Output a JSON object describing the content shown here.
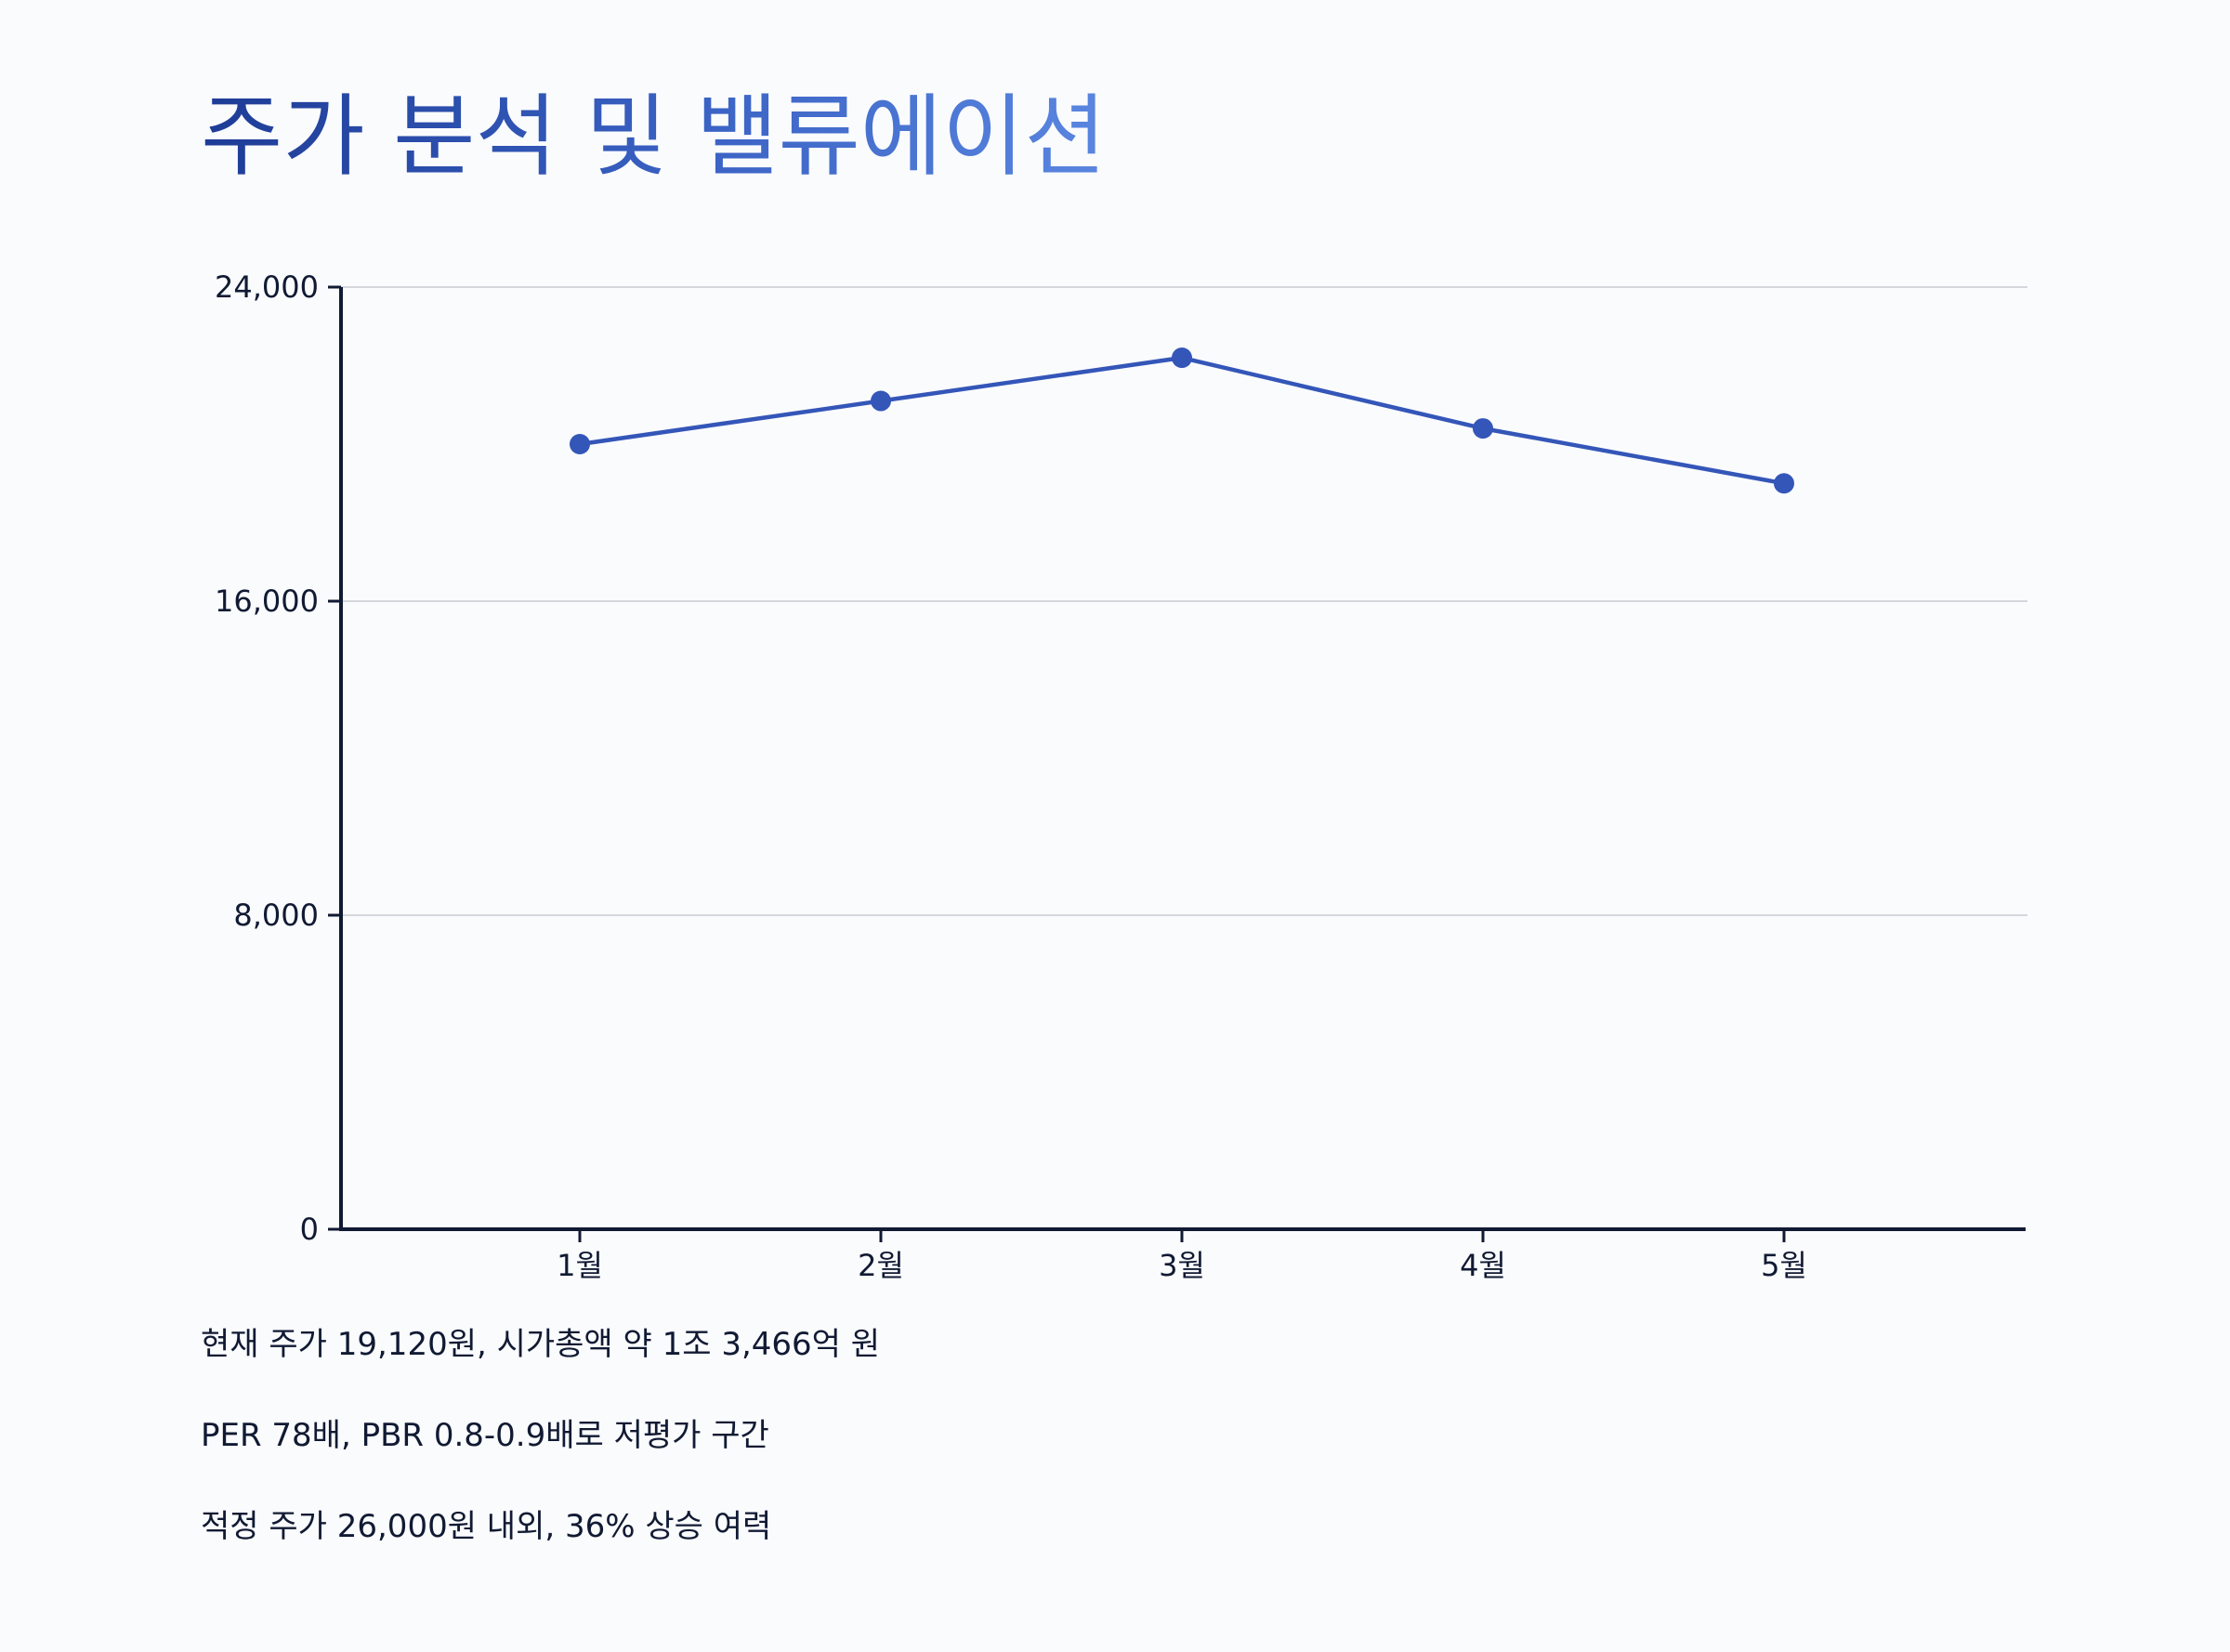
{
  "title": "주가 분석 및 밸류에이션",
  "colors": {
    "title_start": "#1e3c96",
    "title_end": "#5a86e0",
    "series": "#3456b8",
    "axis": "#111a33",
    "grid": "#c8cbd2"
  },
  "chart_data": {
    "type": "line",
    "title": "주가 분석 및 밸류에이션",
    "xlabel": "",
    "ylabel": "",
    "categories": [
      "1월",
      "2월",
      "3월",
      "4월",
      "5월"
    ],
    "series": [
      {
        "values": [
          20000,
          21100,
          22200,
          20400,
          19000
        ]
      }
    ],
    "ylim": [
      0,
      24000
    ],
    "yticks": [
      0,
      8000,
      16000,
      24000
    ],
    "ytick_labels": [
      "0",
      "8,000",
      "16,000",
      "24,000"
    ],
    "grid": true,
    "markers": true
  },
  "notes": [
    "현재 주가 19,120원, 시가총액 약 1조 3,466억 원",
    "PER 78배, PBR 0.8-0.9배로 저평가 구간",
    "적정 주가 26,000원 내외, 36% 상승 여력"
  ]
}
